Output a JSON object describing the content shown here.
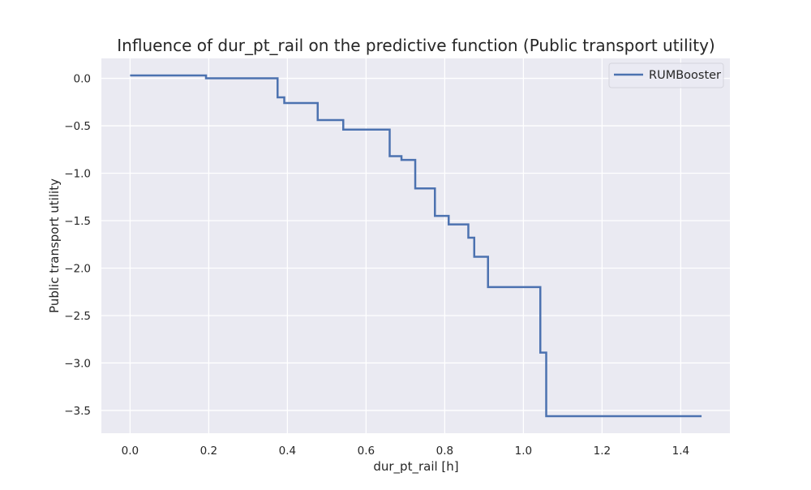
{
  "chart_data": {
    "type": "line",
    "title": "Influence of dur_pt_rail on the predictive function (Public transport utility)",
    "xlabel": "dur_pt_rail [h]",
    "ylabel": "Public transport utility",
    "xlim": [
      -0.073,
      1.525
    ],
    "ylim": [
      -3.74,
      0.21
    ],
    "xticks": [
      0.0,
      0.2,
      0.4,
      0.6,
      0.8,
      1.0,
      1.2,
      1.4
    ],
    "xtick_labels": [
      "0.0",
      "0.2",
      "0.4",
      "0.6",
      "0.8",
      "1.0",
      "1.2",
      "1.4"
    ],
    "yticks": [
      0.0,
      -0.5,
      -1.0,
      -1.5,
      -2.0,
      -2.5,
      -3.0,
      -3.5
    ],
    "ytick_labels": [
      "0.0",
      "−0.5",
      "−1.0",
      "−1.5",
      "−2.0",
      "−2.5",
      "−3.0",
      "−3.5"
    ],
    "grid": true,
    "legend_position": "upper right",
    "colors": {
      "background": "#eaeaf2",
      "grid": "#ffffff",
      "line": "#4c72b0"
    },
    "series": [
      {
        "name": "RUMBooster",
        "step": "post",
        "x": [
          0.0,
          0.193,
          0.375,
          0.392,
          0.477,
          0.542,
          0.66,
          0.69,
          0.725,
          0.775,
          0.81,
          0.86,
          0.875,
          0.91,
          1.043,
          1.058,
          1.453
        ],
        "y": [
          0.03,
          0.0,
          -0.2,
          -0.26,
          -0.44,
          -0.54,
          -0.82,
          -0.86,
          -1.16,
          -1.45,
          -1.54,
          -1.68,
          -1.88,
          -2.2,
          -2.89,
          -3.56,
          -3.56
        ]
      }
    ]
  }
}
